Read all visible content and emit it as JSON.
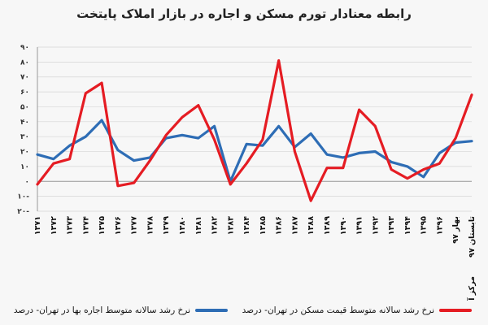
{
  "colors": {
    "background": "#f7f7f7",
    "rent": "#2e6db5",
    "price": "#e51c23",
    "grid": "#d6d6d6",
    "axis": "#333333"
  },
  "chart_data": {
    "type": "line",
    "title": "رابطه معنادار تورم مسکن و اجاره در بازار املاک پایتخت",
    "x": [
      "۱۳۷۱",
      "۱۳۷۲",
      "۱۳۷۳",
      "۱۳۷۴",
      "۱۳۷۵",
      "۱۳۷۶",
      "۱۳۷۷",
      "۱۳۷۸",
      "۱۳۷۹",
      "۱۳۸۰",
      "۱۳۸۱",
      "۱۳۸۲",
      "۱۳۸۳",
      "۱۳۸۴",
      "۱۳۸۵",
      "۱۳۸۶",
      "۱۳۸۷",
      "۱۳۸۸",
      "۱۳۸۹",
      "۱۳۹۰",
      "۱۳۹۱",
      "۱۳۹۲",
      "۱۳۹۳",
      "۱۳۹۴",
      "۱۳۹۵",
      "۱۳۹۶",
      "بهار ۹۷",
      "تابستان ۹۷"
    ],
    "series": [
      {
        "name": "نرخ رشد سالانه متوسط قیمت مسکن در تهران- درصد",
        "color": "#e51c23",
        "values": [
          -2,
          12,
          15,
          59,
          66,
          -3,
          -1,
          14,
          31,
          43,
          51,
          28,
          -2,
          12,
          28,
          81,
          20,
          -13,
          9,
          9,
          48,
          37,
          8,
          2,
          8,
          12,
          29,
          58
        ]
      },
      {
        "name": "نرخ رشد سالانه متوسط اجاره بها در تهران- درصد",
        "color": "#2e6db5",
        "values": [
          18,
          15,
          24,
          30,
          41,
          21,
          14,
          16,
          29,
          31,
          29,
          37,
          0,
          25,
          24,
          37,
          23,
          32,
          18,
          16,
          19,
          20,
          13,
          10,
          3,
          19,
          26,
          27
        ]
      }
    ],
    "y_ticks": [
      "۹۰",
      "۸۰",
      "۷۰",
      "۶۰",
      "۵۰",
      "۴۰",
      "۳۰",
      "۲۰",
      "۱۰",
      "۰",
      "۱۰-",
      "۲۰-"
    ],
    "ylim": [
      -20,
      90
    ],
    "grid": true,
    "legend_position": "bottom",
    "source": "مرکز آمار"
  }
}
